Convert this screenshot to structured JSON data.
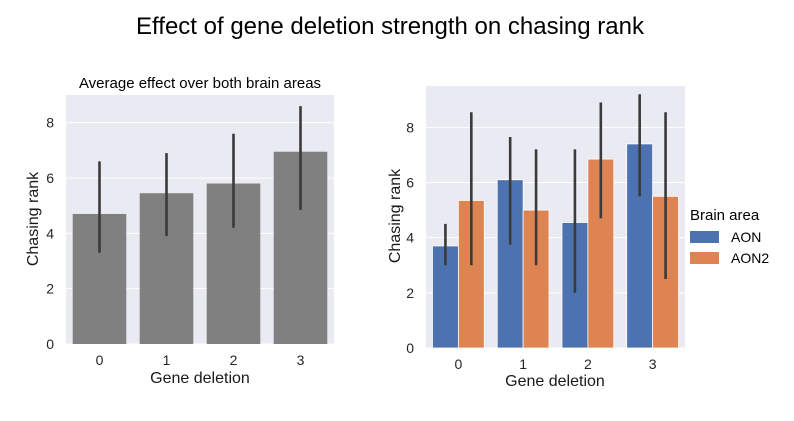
{
  "figure": {
    "suptitle": "Effect of gene deletion strength on chasing rank"
  },
  "colors": {
    "panel_bg": "#eaeaf2",
    "grid": "#ffffff",
    "gray_bar": "#808080",
    "aon": "#4c72b0",
    "aon2": "#dd8452",
    "errorbar": "#3a3a3a"
  },
  "chart_data": [
    {
      "type": "bar",
      "title": "Average effect over both brain areas",
      "xlabel": "Gene deletion",
      "ylabel": "Chasing rank",
      "categories": [
        "0",
        "1",
        "2",
        "3"
      ],
      "values": [
        4.7,
        5.45,
        5.8,
        6.95
      ],
      "error_low": [
        3.3,
        3.9,
        4.2,
        4.85
      ],
      "error_high": [
        6.6,
        6.9,
        7.6,
        8.6
      ],
      "ylim": [
        0,
        9.0
      ],
      "yticks": [
        0,
        2,
        4,
        6,
        8
      ],
      "grid": true
    },
    {
      "type": "bar",
      "title": "",
      "xlabel": "Gene deletion",
      "ylabel": "Chasing rank",
      "categories": [
        "0",
        "1",
        "2",
        "3"
      ],
      "legend_title": "Brain area",
      "legend_position": "right",
      "series": [
        {
          "name": "AON",
          "values": [
            3.7,
            6.1,
            4.55,
            7.4
          ],
          "error_low": [
            3.0,
            3.75,
            2.0,
            5.5
          ],
          "error_high": [
            4.5,
            7.65,
            7.2,
            9.2
          ]
        },
        {
          "name": "AON2",
          "values": [
            5.35,
            5.0,
            6.85,
            5.5
          ],
          "error_low": [
            3.0,
            3.0,
            4.7,
            2.5
          ],
          "error_high": [
            8.55,
            7.2,
            8.9,
            8.55
          ]
        }
      ],
      "ylim": [
        0,
        9.5
      ],
      "yticks": [
        0,
        2,
        4,
        6,
        8
      ],
      "grid": true
    }
  ]
}
